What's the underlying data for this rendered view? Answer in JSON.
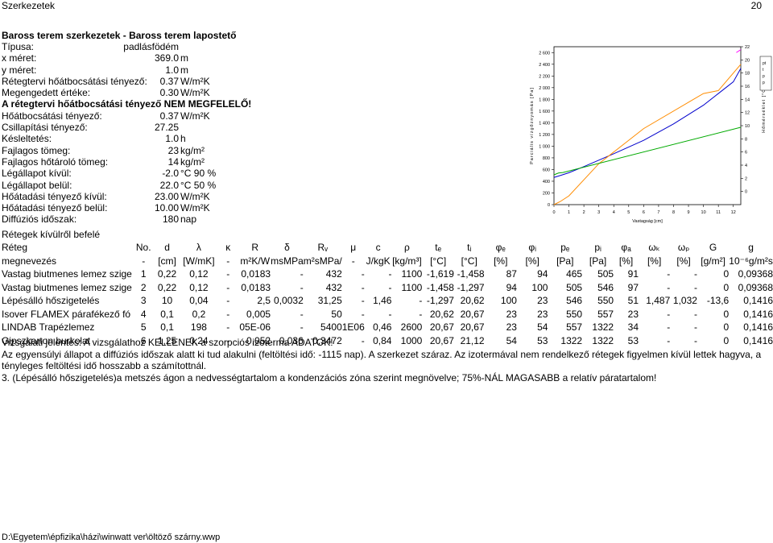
{
  "header": {
    "title": "Szerkezetek",
    "page": "20"
  },
  "props": {
    "title": "Baross terem szerkezetek - Baross terem lapostető",
    "rows": [
      {
        "k": "Típusa:",
        "v": "padlásfödém",
        "u": "",
        "bold": false
      },
      {
        "k": "x méret:",
        "v": "369.0",
        "u": "m",
        "bold": false
      },
      {
        "k": "y méret:",
        "v": "1.0",
        "u": "m",
        "bold": false
      },
      {
        "k": "Rétegtervi hőátbocsátási tényező:",
        "v": "0.37",
        "u": "W/m²K",
        "bold": false
      },
      {
        "k": "Megengedett értéke:",
        "v": "0.30",
        "u": "W/m²K",
        "bold": false
      },
      {
        "k": "A rétegtervi hőátbocsátási tényező NEM MEGFELELŐ!",
        "v": "",
        "u": "",
        "bold": true
      },
      {
        "k": "Hőátbocsátási tényező:",
        "v": "0.37",
        "u": "W/m²K",
        "bold": false
      },
      {
        "k": "Csillapítási tényező:",
        "v": "27.25",
        "u": "",
        "bold": false
      },
      {
        "k": "Késleltetés:",
        "v": "1.0",
        "u": "h",
        "bold": false
      },
      {
        "k": "Fajlagos tömeg:",
        "v": "23",
        "u": "kg/m²",
        "bold": false
      },
      {
        "k": "Fajlagos hőtároló tömeg:",
        "v": "14",
        "u": "kg/m²",
        "bold": false
      },
      {
        "k": "Légállapot kívül:",
        "v": "-2.0",
        "u": "°C   90 %",
        "bold": false
      },
      {
        "k": "Légállapot belül:",
        "v": "22.0",
        "u": "°C   50 %",
        "bold": false
      },
      {
        "k": "Hőátadási tényező kívül:",
        "v": "23.00",
        "u": "W/m²K",
        "bold": false
      },
      {
        "k": "Hőátadási tényező belül:",
        "v": "10.00",
        "u": "W/m²K",
        "bold": false
      },
      {
        "k": "Diffúziós időszak:",
        "v": "180",
        "u": "nap",
        "bold": false
      }
    ]
  },
  "chart_data": {
    "type": "line",
    "xlabel": "Vastagság [cm]",
    "ylabel": "Parciális vízgőznyomás [Pa]",
    "ylabel2": "Hőmérséklet [°C]",
    "x_ticks": [
      "0",
      "1",
      "2",
      "3",
      "4",
      "5",
      "6",
      "7",
      "8",
      "9",
      "10",
      "11",
      "12"
    ],
    "y_ticks": [
      "0",
      "200",
      "400",
      "600",
      "800",
      "1 000",
      "1 200",
      "1 400",
      "1 600",
      "1 800",
      "2 000",
      "2 200",
      "2 400",
      "2 600"
    ],
    "y2_ticks": [
      "0",
      "2",
      "4",
      "6",
      "8",
      "10",
      "12",
      "14",
      "16",
      "18",
      "20",
      "22"
    ],
    "xlim": [
      0,
      12.5
    ],
    "ylim": [
      0,
      2700
    ],
    "y2lim": [
      -2,
      22
    ],
    "legend": [
      "pt",
      "t",
      "p",
      "p"
    ],
    "series": [
      {
        "color": "#0000cc",
        "axis": "p",
        "x": [
          0,
          0.5,
          1,
          2,
          4,
          6,
          8,
          10,
          11,
          12,
          12.5
        ],
        "y": [
          465,
          505,
          546,
          650,
          870,
          1100,
          1380,
          1700,
          1900,
          2100,
          2330
        ]
      },
      {
        "color": "#ff8c00",
        "axis": "p",
        "x": [
          0,
          0.4,
          1,
          3,
          6,
          9,
          10,
          11,
          12,
          12.5
        ],
        "y": [
          0,
          50,
          150,
          700,
          1300,
          1750,
          1900,
          1950,
          2250,
          2400
        ]
      },
      {
        "color": "#00aa00",
        "axis": "p",
        "x": [
          0,
          0.3,
          0.6,
          12.5
        ],
        "y": [
          510,
          540,
          550,
          1322
        ]
      },
      {
        "color": "#ff00ff",
        "axis": "p",
        "x": [
          12.2,
          12.5
        ],
        "y": [
          2600,
          2650
        ]
      }
    ]
  },
  "layers_title": "Rétegek kívülről befelé",
  "table": {
    "head1": [
      "Réteg",
      "No.",
      "d",
      "λ",
      "κ",
      "R",
      "δ",
      "Rᵥ",
      "μ",
      "c",
      "ρ",
      "tₑ",
      "tᵢ",
      "φₑ",
      "φᵢ",
      "pₑ",
      "pᵢ",
      "φₐ",
      "ωₖ",
      "ωₚ",
      "G",
      "g"
    ],
    "head2": [
      "megnevezés",
      "-",
      "[cm]",
      "[W/mK]",
      "-",
      "m²K/W",
      "msMPa",
      "m²sMPa/",
      "-",
      "J/kgK",
      "[kg/m³]",
      "[°C]",
      "[°C]",
      "[%]",
      "[%]",
      "[Pa]",
      "[Pa]",
      "[%]",
      "[%]",
      "[%]",
      "[g/m²]",
      "10⁻⁶g/m²s"
    ],
    "rows": [
      [
        "Vastag biutmenes lemez szige",
        "1",
        "0,22",
        "0,12",
        "-",
        "0,0183",
        "-",
        "432",
        "-",
        "-",
        "1100",
        "-1,619",
        "-1,458",
        "87",
        "94",
        "465",
        "505",
        "91",
        "-",
        "-",
        "0",
        "0,09368"
      ],
      [
        "Vastag biutmenes lemez szige",
        "2",
        "0,22",
        "0,12",
        "-",
        "0,0183",
        "-",
        "432",
        "-",
        "-",
        "1100",
        "-1,458",
        "-1,297",
        "94",
        "100",
        "505",
        "546",
        "97",
        "-",
        "-",
        "0",
        "0,09368"
      ],
      [
        "Lépésálló hőszigetelés",
        "3",
        "10",
        "0,04",
        "-",
        "2,5",
        "0,0032",
        "31,25",
        "-",
        "1,46",
        "-",
        "-1,297",
        "20,62",
        "100",
        "23",
        "546",
        "550",
        "51",
        "1,487",
        "1,032",
        "-13,6",
        "0,1416"
      ],
      [
        "Isover FLAMEX párafékező fó",
        "4",
        "0,1",
        "0,2",
        "-",
        "0,005",
        "-",
        "50",
        "-",
        "-",
        "-",
        "20,62",
        "20,67",
        "23",
        "23",
        "550",
        "557",
        "23",
        "-",
        "-",
        "0",
        "0,1416"
      ],
      [
        "LINDAB Trapézlemez",
        "5",
        "0,1",
        "198",
        "-",
        "05E-06",
        "-",
        "5400",
        "1E06",
        "0,46",
        "2600",
        "20,67",
        "20,67",
        "23",
        "54",
        "557",
        "1322",
        "34",
        "-",
        "-",
        "0",
        "0,1416"
      ],
      [
        "Gipszkarton burkolat",
        "6",
        "1,25",
        "0,24",
        "-",
        "0,052",
        "0,036",
        "0,3472",
        "-",
        "0,84",
        "1000",
        "20,67",
        "21,12",
        "54",
        "53",
        "1322",
        "1322",
        "53",
        "-",
        "-",
        "0",
        "0,1416"
      ]
    ]
  },
  "notes": [
    "Vizsgálati jelentés: A vizsgálathoz KELLENEK a szorpciós izoterma ADATOK!",
    "Az egyensúlyi állapot a diffúziós időszak alatt ki tud alakulni (feltöltési idő: -1115 nap). A szerkezet száraz. Az izotermával nem rendelkező rétegek figyelmen kívül lettek hagyva, a",
    "tényleges feltöltési idő hosszabb a számítottnál.",
    "3. (Lépésálló hőszigetelés)a metszés ágon a nedvességtartalom a kondenzációs zóna szerint megnövelve; 75%-NÁL MAGASABB a relatív páratartalom!"
  ],
  "footer": "D:\\Egyetem\\épfizika\\házi\\winwatt ver\\öltöző szárny.wwp"
}
